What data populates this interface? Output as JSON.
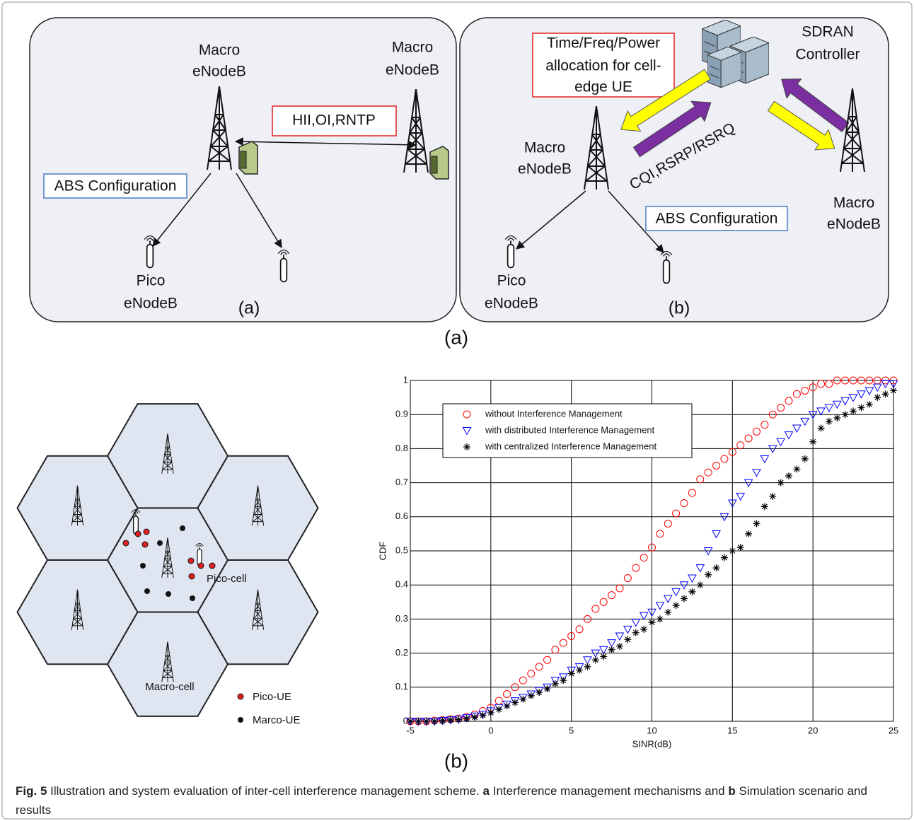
{
  "diagram_a": {
    "macro_left": [
      "Macro",
      "eNodeB"
    ],
    "macro_right": [
      "Macro",
      "eNodeB"
    ],
    "message": "HII,OI,RNTP",
    "abs": "ABS Configuration",
    "pico": [
      "Pico",
      "eNodeB"
    ],
    "label": "(a)"
  },
  "diagram_b": {
    "allocation": [
      "Time/Freq/Power",
      "allocation for cell-",
      "edge UE"
    ],
    "controller": [
      "SDRAN",
      "Controller"
    ],
    "feedback": "CQI,RSRP/RSRQ",
    "macro_left": [
      "Macro",
      "eNodeB"
    ],
    "macro_right": [
      "Macro",
      "eNodeB"
    ],
    "abs": "ABS Configuration",
    "pico": [
      "Pico",
      "eNodeB"
    ],
    "label": "(b)"
  },
  "top_label": "(a)",
  "scenario": {
    "pico_cell": "Pico-cell",
    "macro_cell": "Macro-cell",
    "legend": [
      "Pico-UE",
      "Marco-UE"
    ]
  },
  "chart_data": {
    "type": "scatter",
    "xlabel": "SINR(dB)",
    "ylabel": "CDF",
    "x": [
      -5,
      -4.5,
      -4,
      -3.5,
      -3,
      -2.5,
      -2,
      -1.5,
      -1,
      -0.5,
      0,
      0.5,
      1,
      1.5,
      2,
      2.5,
      3,
      3.5,
      4,
      4.5,
      5,
      5.5,
      6,
      6.5,
      7,
      7.5,
      8,
      8.5,
      9,
      9.5,
      10,
      10.5,
      11,
      11.5,
      12,
      12.5,
      13,
      13.5,
      14,
      14.5,
      15,
      15.5,
      16,
      16.5,
      17,
      17.5,
      18,
      18.5,
      19,
      19.5,
      20,
      20.5,
      21,
      21.5,
      22,
      22.5,
      23,
      23.5,
      24,
      24.5,
      25
    ],
    "series": [
      {
        "name": "without Interference Management",
        "color": "#ff0000",
        "marker": "circle",
        "values": [
          0,
          0,
          0,
          0.002,
          0.004,
          0.006,
          0.008,
          0.013,
          0.02,
          0.03,
          0.04,
          0.06,
          0.08,
          0.1,
          0.12,
          0.14,
          0.16,
          0.18,
          0.21,
          0.23,
          0.25,
          0.27,
          0.3,
          0.33,
          0.35,
          0.37,
          0.39,
          0.42,
          0.45,
          0.48,
          0.51,
          0.55,
          0.58,
          0.61,
          0.64,
          0.67,
          0.71,
          0.73,
          0.75,
          0.77,
          0.79,
          0.81,
          0.83,
          0.85,
          0.87,
          0.9,
          0.92,
          0.94,
          0.96,
          0.97,
          0.98,
          0.99,
          0.99,
          1,
          1,
          1,
          1,
          1,
          1,
          1,
          1
        ]
      },
      {
        "name": "with distributed Interference Management",
        "color": "#0000ff",
        "marker": "triangle",
        "values": [
          0,
          0,
          0,
          0,
          0.002,
          0.004,
          0.006,
          0.01,
          0.015,
          0.02,
          0.03,
          0.04,
          0.05,
          0.06,
          0.07,
          0.08,
          0.09,
          0.1,
          0.12,
          0.13,
          0.15,
          0.16,
          0.18,
          0.2,
          0.21,
          0.23,
          0.25,
          0.27,
          0.29,
          0.31,
          0.32,
          0.34,
          0.36,
          0.38,
          0.4,
          0.42,
          0.45,
          0.5,
          0.55,
          0.6,
          0.64,
          0.66,
          0.7,
          0.73,
          0.77,
          0.8,
          0.82,
          0.84,
          0.86,
          0.88,
          0.9,
          0.91,
          0.92,
          0.93,
          0.94,
          0.95,
          0.96,
          0.97,
          0.98,
          0.99,
          0.99
        ]
      },
      {
        "name": "with centralized Interference Management",
        "color": "#000000",
        "marker": "star",
        "values": [
          0,
          0,
          0,
          0,
          0.002,
          0.004,
          0.005,
          0.008,
          0.012,
          0.018,
          0.025,
          0.035,
          0.045,
          0.055,
          0.065,
          0.075,
          0.085,
          0.095,
          0.11,
          0.12,
          0.14,
          0.15,
          0.16,
          0.18,
          0.19,
          0.21,
          0.22,
          0.24,
          0.26,
          0.27,
          0.29,
          0.3,
          0.32,
          0.34,
          0.36,
          0.38,
          0.4,
          0.43,
          0.45,
          0.48,
          0.5,
          0.51,
          0.55,
          0.58,
          0.63,
          0.66,
          0.7,
          0.72,
          0.74,
          0.77,
          0.82,
          0.86,
          0.88,
          0.89,
          0.9,
          0.91,
          0.92,
          0.93,
          0.95,
          0.96,
          0.97
        ]
      }
    ],
    "xlim": [
      -5,
      25
    ],
    "xticks": [
      -5,
      0,
      5,
      10,
      15,
      20,
      25
    ],
    "ylim": [
      0,
      1
    ],
    "yticks": [
      0,
      0.1,
      0.2,
      0.3,
      0.4,
      0.5,
      0.6,
      0.7,
      0.8,
      0.9,
      1
    ],
    "grid": true,
    "legend": "upper left"
  },
  "bottom_label": "(b)",
  "caption": {
    "label": "Fig. 5",
    "text": "Illustration and system evaluation of inter-cell interference management scheme.",
    "parts": [
      {
        "key": "a",
        "text": "Interference management mechanisms and"
      },
      {
        "key": "b",
        "text": "Simulation scenario and results"
      }
    ]
  }
}
